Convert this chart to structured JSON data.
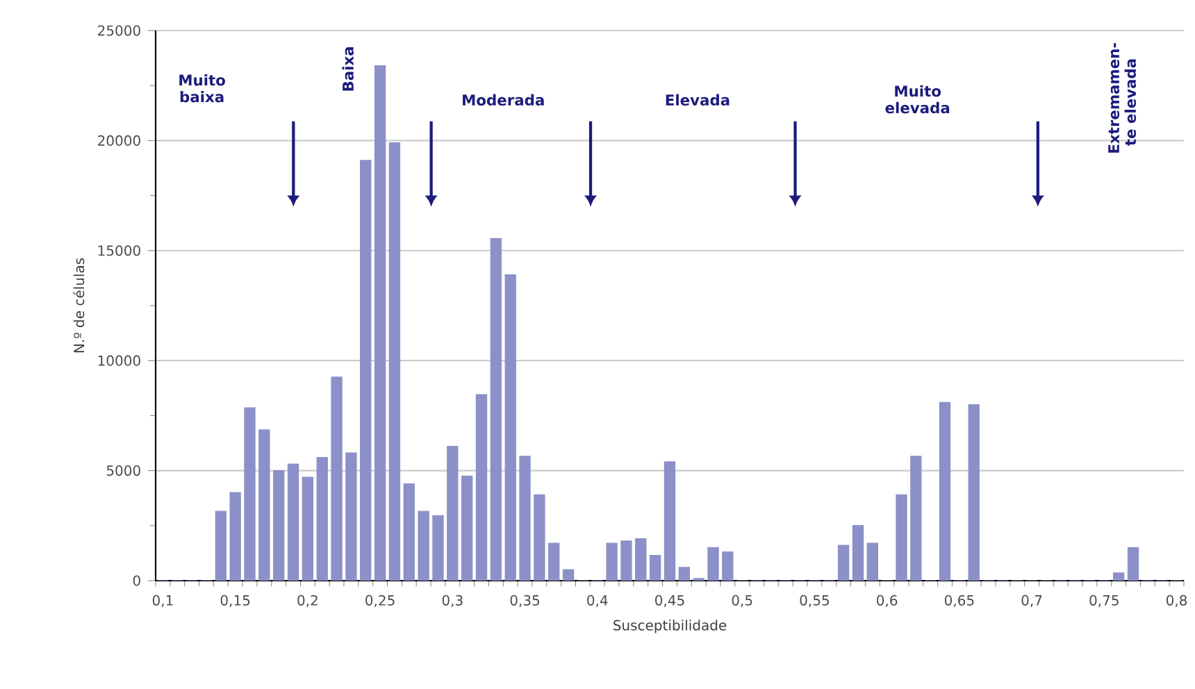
{
  "chart_data": {
    "type": "bar",
    "xlabel": "Susceptibilidade",
    "ylabel": "N.º de células",
    "categories": [
      "0,1",
      null,
      null,
      null,
      null,
      "0,15",
      null,
      null,
      null,
      null,
      "0,2",
      null,
      null,
      null,
      null,
      "0,25",
      null,
      null,
      null,
      null,
      "0,3",
      null,
      null,
      null,
      null,
      "0,35",
      null,
      null,
      null,
      null,
      "0,4",
      null,
      null,
      null,
      null,
      "0,45",
      null,
      null,
      null,
      null,
      "0,5",
      null,
      null,
      null,
      null,
      "0,55",
      null,
      null,
      null,
      null,
      "0,6",
      null,
      null,
      null,
      null,
      "0,65",
      null,
      null,
      null,
      null,
      "0,7",
      null,
      null,
      null,
      null,
      "0,75",
      null,
      null,
      null,
      null,
      "0,8"
    ],
    "values": [
      0,
      0,
      0,
      0,
      3150,
      4000,
      7850,
      6850,
      5000,
      5300,
      4700,
      5600,
      9250,
      5800,
      19100,
      23400,
      19900,
      4400,
      3150,
      2950,
      6100,
      4750,
      8450,
      15550,
      13900,
      5650,
      3900,
      1700,
      500,
      0,
      0,
      1700,
      1800,
      1900,
      1150,
      5400,
      600,
      100,
      1500,
      1300,
      0,
      0,
      0,
      0,
      0,
      0,
      0,
      1600,
      2500,
      1700,
      0,
      3900,
      5650,
      0,
      8100,
      0,
      8000,
      0,
      0,
      0,
      0,
      0,
      0,
      0,
      0,
      0,
      350,
      1500,
      0,
      0,
      0
    ],
    "color": "#8c90c8",
    "ylim": [
      0,
      25000
    ],
    "yticks": [
      0,
      5000,
      10000,
      15000,
      20000,
      25000
    ],
    "grid": "y",
    "annotations": [
      "Muito baixa",
      "Baixa",
      "Moderada",
      "Elevada",
      "Muito elevada",
      "Extremamen-te elevada"
    ]
  }
}
